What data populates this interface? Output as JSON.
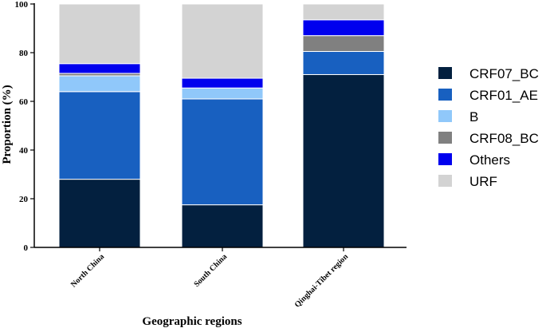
{
  "chart_data": {
    "type": "bar",
    "stacked": true,
    "categories": [
      "North China",
      "South China",
      "Qinghai-Tibet region"
    ],
    "series": [
      {
        "name": "CRF07_BC",
        "color": "#03203f",
        "values": [
          28,
          17.5,
          71
        ]
      },
      {
        "name": "CRF01_AE",
        "color": "#1860c0",
        "values": [
          36,
          43.5,
          9.5
        ]
      },
      {
        "name": "B",
        "color": "#90c8fa",
        "values": [
          6.5,
          4.5,
          0
        ]
      },
      {
        "name": "CRF08_BC",
        "color": "#808080",
        "values": [
          1,
          0,
          6.5
        ]
      },
      {
        "name": "Others",
        "color": "#0000ee",
        "values": [
          4,
          4,
          6.5
        ]
      },
      {
        "name": "URF",
        "color": "#d3d3d3",
        "values": [
          24.5,
          30.5,
          6.5
        ]
      }
    ],
    "xlabel": "Geographic regions",
    "ylabel": "Proportion (%)",
    "ylim": [
      0,
      100
    ],
    "yticks": [
      0,
      20,
      40,
      60,
      80,
      100
    ],
    "legend_position": "right",
    "grid": false
  }
}
